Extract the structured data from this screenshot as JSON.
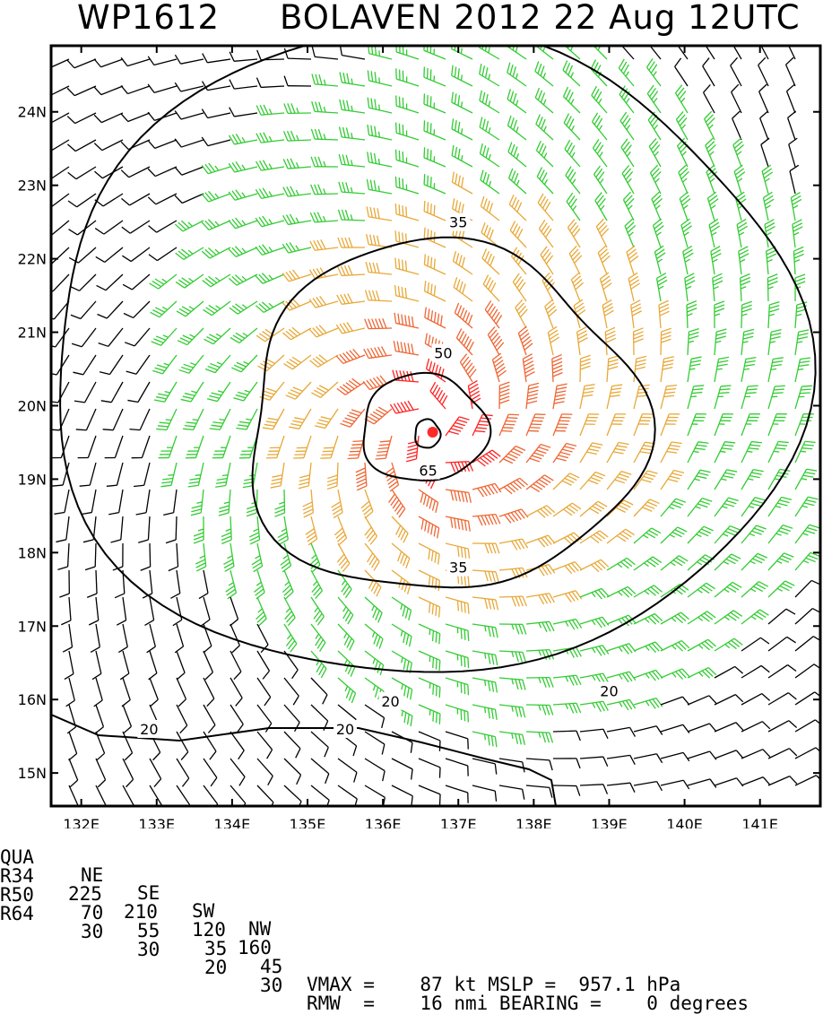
{
  "title": {
    "storm_id": "WP1612",
    "storm_label": "BOLAVEN 2012 22 Aug 12UTC"
  },
  "map": {
    "lon_labels": [
      "132E",
      "133E",
      "134E",
      "135E",
      "136E",
      "137E",
      "138E",
      "139E",
      "140E",
      "141E"
    ],
    "lat_labels": [
      "24N",
      "23N",
      "22N",
      "21N",
      "20N",
      "19N",
      "18N",
      "17N",
      "16N",
      "15N"
    ],
    "lon_range": [
      131.6,
      141.8
    ],
    "lat_range": [
      14.55,
      24.9
    ],
    "storm_center": {
      "lon": 136.66,
      "lat": 19.64,
      "color": "#ff2a2a"
    },
    "contour_labels": [
      {
        "text": "35",
        "lon": 137.0,
        "lat": 22.5
      },
      {
        "text": "50",
        "lon": 136.8,
        "lat": 20.72
      },
      {
        "text": "65",
        "lon": 136.6,
        "lat": 19.12
      },
      {
        "text": "35",
        "lon": 137.0,
        "lat": 17.8
      },
      {
        "text": "20",
        "lon": 136.1,
        "lat": 15.98
      },
      {
        "text": "20",
        "lon": 139.0,
        "lat": 16.12
      },
      {
        "text": "20",
        "lon": 132.9,
        "lat": 15.6
      },
      {
        "text": "20",
        "lon": 135.5,
        "lat": 15.6
      }
    ],
    "barb_colors": {
      "lt20": "#000000",
      "20to34": "#33cc33",
      "35to49": "#e8a838",
      "50to64": "#ee6633",
      "ge65": "#ff2222"
    }
  },
  "table": {
    "header": [
      "QUA",
      "NE",
      "SE",
      "SW",
      "NW"
    ],
    "rows": [
      [
        "R34",
        "225",
        "210",
        "120",
        "160"
      ],
      [
        "R50",
        "70",
        "55",
        "35",
        "45"
      ],
      [
        "R64",
        "30",
        "30",
        "20",
        "30"
      ]
    ],
    "line_r50": "VMAX =    87 kt MSLP =  957.1 hPa",
    "line_r64": "RMW  =    16 nmi BEARING =    0 degrees"
  }
}
